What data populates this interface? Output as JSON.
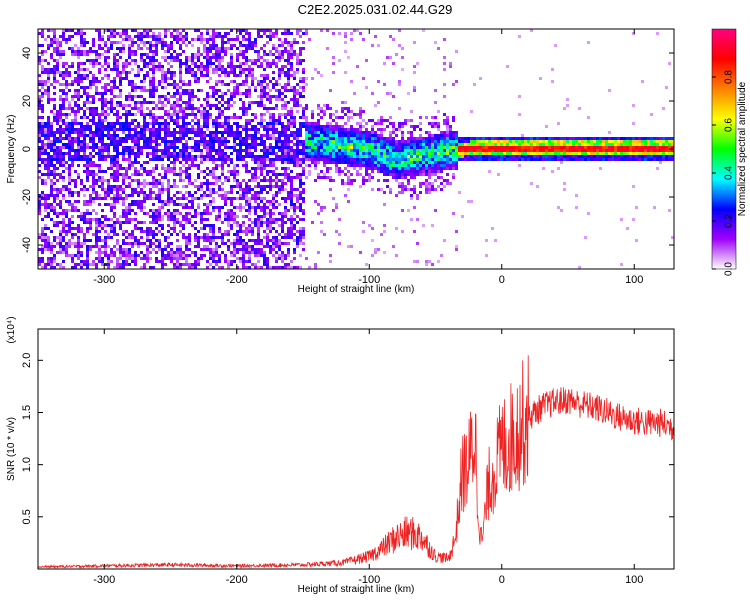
{
  "title": "C2E2.2025.031.02.44.G29",
  "chart_data": [
    {
      "type": "heatmap",
      "xlabel": "Height of straight line (km)",
      "ylabel": "Frequency (Hz)",
      "xlim": [
        -350,
        130
      ],
      "ylim": [
        -50,
        50
      ],
      "x_ticks": [
        -300,
        -200,
        -100,
        0,
        100
      ],
      "x_tick_labels": [
        "-300",
        "-200",
        "-100",
        "0",
        "100"
      ],
      "y_ticks": [
        -40,
        -20,
        0,
        20,
        40
      ],
      "y_tick_labels": [
        "-40",
        "-20",
        "0",
        "20",
        "40"
      ],
      "colorbar": {
        "label": "Normalized spectral amplitude",
        "range": [
          0,
          1
        ],
        "ticks": [
          0.0,
          0.2,
          0.4,
          0.6,
          0.8
        ],
        "tick_labels": [
          "0.0",
          "0.2",
          "0.4",
          "0.6",
          "0.8"
        ],
        "colors": [
          "#ffffff",
          "#a000ff",
          "#0000ff",
          "#00ffff",
          "#00ff00",
          "#ffff00",
          "#ff8000",
          "#ff0000",
          "#ff0080"
        ]
      },
      "ridge": [
        {
          "x": -150,
          "freq": 4
        },
        {
          "x": -120,
          "freq": 2
        },
        {
          "x": -100,
          "freq": 0
        },
        {
          "x": -80,
          "freq": -4
        },
        {
          "x": -60,
          "freq": -2
        },
        {
          "x": -40,
          "freq": 0
        },
        {
          "x": -20,
          "freq": 1
        },
        {
          "x": 0,
          "freq": 1
        },
        {
          "x": 50,
          "freq": 1
        },
        {
          "x": 100,
          "freq": 1
        },
        {
          "x": 130,
          "freq": 1
        }
      ]
    },
    {
      "type": "line",
      "xlabel": "Height of straight line (km)",
      "ylabel": "SNR (10 * v/v)",
      "scale_label": "(x10⁴)",
      "xlim": [
        -350,
        130
      ],
      "ylim": [
        0,
        2.3
      ],
      "x_ticks": [
        -300,
        -200,
        -100,
        0,
        100
      ],
      "x_tick_labels": [
        "-300",
        "-200",
        "-100",
        "0",
        "100"
      ],
      "y_ticks": [
        0.5,
        1.0,
        1.5,
        2.0
      ],
      "y_tick_labels": [
        "0.5",
        "1.0",
        "1.5",
        "2.0"
      ],
      "color": "#ee2222",
      "x": [
        -350,
        -300,
        -250,
        -200,
        -150,
        -120,
        -100,
        -90,
        -80,
        -70,
        -60,
        -50,
        -40,
        -35,
        -30,
        -25,
        -20,
        -18,
        -15,
        -10,
        0,
        10,
        20,
        30,
        40,
        50,
        60,
        70,
        80,
        90,
        100,
        110,
        120,
        130
      ],
      "y": [
        0.02,
        0.03,
        0.04,
        0.03,
        0.04,
        0.06,
        0.12,
        0.2,
        0.3,
        0.35,
        0.3,
        0.12,
        0.1,
        0.3,
        0.9,
        1.0,
        1.3,
        0.6,
        0.25,
        0.8,
        1.15,
        1.3,
        1.45,
        1.55,
        1.6,
        1.62,
        1.58,
        1.55,
        1.5,
        1.45,
        1.42,
        1.4,
        1.4,
        1.35
      ]
    }
  ]
}
